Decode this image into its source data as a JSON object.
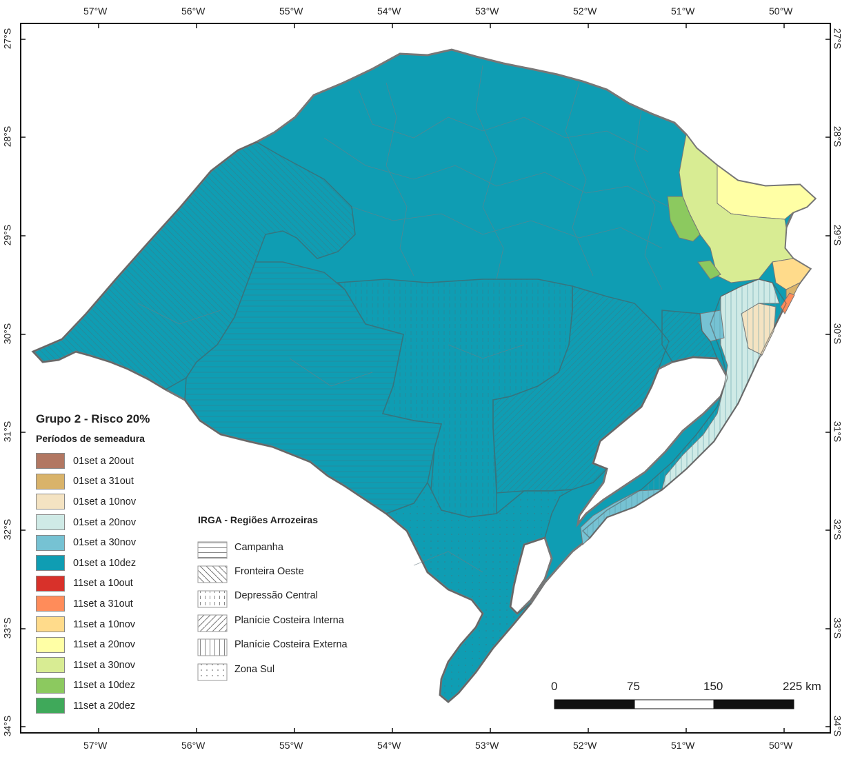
{
  "map": {
    "title": "Grupo 2 - Risco 20%",
    "legend_subtitle": "Períodos de semeadura",
    "legend_items": [
      {
        "label": "01set a 20out",
        "color": "#b27762"
      },
      {
        "label": "01set a 31out",
        "color": "#d9b36a"
      },
      {
        "label": "01set a 10nov",
        "color": "#f4e3c2"
      },
      {
        "label": "01set a 20nov",
        "color": "#cfeae6"
      },
      {
        "label": "01set a 30nov",
        "color": "#76c2d3"
      },
      {
        "label": "01set a 10dez",
        "color": "#0f9db3"
      },
      {
        "label": "11set a 10out",
        "color": "#d8312a"
      },
      {
        "label": "11set a 31out",
        "color": "#ff8c5a"
      },
      {
        "label": "11set a 10nov",
        "color": "#ffdb8b"
      },
      {
        "label": "11set a 20nov",
        "color": "#ffffa5"
      },
      {
        "label": "11set a 30nov",
        "color": "#d8ec93"
      },
      {
        "label": "11set a 10dez",
        "color": "#8cc95f"
      },
      {
        "label": "11set a 20dez",
        "color": "#3fa95a"
      }
    ],
    "irga_title": "IRGA - Regiões Arrozeiras",
    "irga_items": [
      {
        "label": "Campanha",
        "pattern": "horizontal-lines"
      },
      {
        "label": "Fronteira Oeste",
        "pattern": "back-diagonal-lines"
      },
      {
        "label": "Depressão Central",
        "pattern": "vertical-dashes"
      },
      {
        "label": "Planície Costeira Interna",
        "pattern": "forward-diagonal-lines"
      },
      {
        "label": "Planície Costeira Externa",
        "pattern": "vertical-lines"
      },
      {
        "label": "Zona Sul",
        "pattern": "dots"
      }
    ],
    "scale_bar": {
      "labels": [
        "0",
        "75",
        "150",
        "225 km"
      ]
    },
    "longitude_ticks": [
      "57°W",
      "56°W",
      "55°W",
      "54°W",
      "53°W",
      "52°W",
      "51°W",
      "50°W"
    ],
    "latitude_ticks": [
      "27°S",
      "28°S",
      "29°S",
      "30°S",
      "31°S",
      "32°S",
      "33°S",
      "34°S"
    ]
  }
}
